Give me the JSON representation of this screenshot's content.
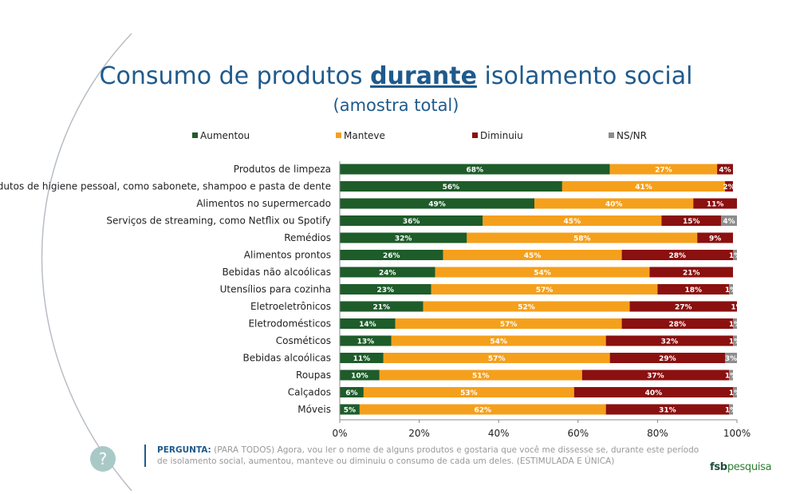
{
  "title": {
    "prefix": "Consumo de produtos ",
    "emphasis": "durante",
    "suffix": " isolamento social"
  },
  "subtitle": "(amostra total)",
  "colors": {
    "Aumentou": "#1e5c2a",
    "Manteve": "#f5a01c",
    "Diminuiu": "#8b1010",
    "NS/NR": "#8c8c8c"
  },
  "chart_data": {
    "type": "bar",
    "orientation": "horizontal",
    "stacked": true,
    "legend_position": "top",
    "xlim": [
      0,
      100
    ],
    "x_ticks": [
      "0%",
      "20%",
      "40%",
      "60%",
      "80%",
      "100%"
    ],
    "categories": [
      "Produtos de limpeza",
      "Produtos de higiene pessoal, como sabonete, shampoo e pasta de dente",
      "Alimentos no supermercado",
      "Serviços de streaming, como Netflix ou Spotify",
      "Remédios",
      "Alimentos prontos",
      "Bebidas não alcoólicas",
      "Utensílios para cozinha",
      "Eletroeletrônicos",
      "Eletrodomésticos",
      "Cosméticos",
      "Bebidas alcoólicas",
      "Roupas",
      "Calçados",
      "Móveis"
    ],
    "series": [
      {
        "name": "Aumentou",
        "values": [
          68,
          56,
          49,
          36,
          32,
          26,
          24,
          23,
          21,
          14,
          13,
          11,
          10,
          6,
          5
        ]
      },
      {
        "name": "Manteve",
        "values": [
          27,
          41,
          40,
          45,
          58,
          45,
          54,
          57,
          52,
          57,
          54,
          57,
          51,
          53,
          62
        ]
      },
      {
        "name": "Diminuiu",
        "values": [
          4,
          2,
          11,
          15,
          9,
          28,
          21,
          18,
          27,
          28,
          32,
          29,
          37,
          40,
          31
        ]
      },
      {
        "name": "NS/NR",
        "values": [
          0,
          0,
          0,
          4,
          0,
          1,
          0,
          1,
          1,
          1,
          1,
          3,
          1,
          1,
          1
        ]
      }
    ]
  },
  "question": {
    "label": "PERGUNTA:",
    "text": "(PARA TODOS) Agora, vou ler o nome de alguns produtos e gostaria que você me dissesse se, durante este período de isolamento social, aumentou, manteve ou diminuiu o consumo de cada um deles. (ESTIMULADA E ÚNICA)"
  },
  "help_icon": "question-icon",
  "brand": {
    "part1": "fsb",
    "part2": "pesquisa"
  }
}
